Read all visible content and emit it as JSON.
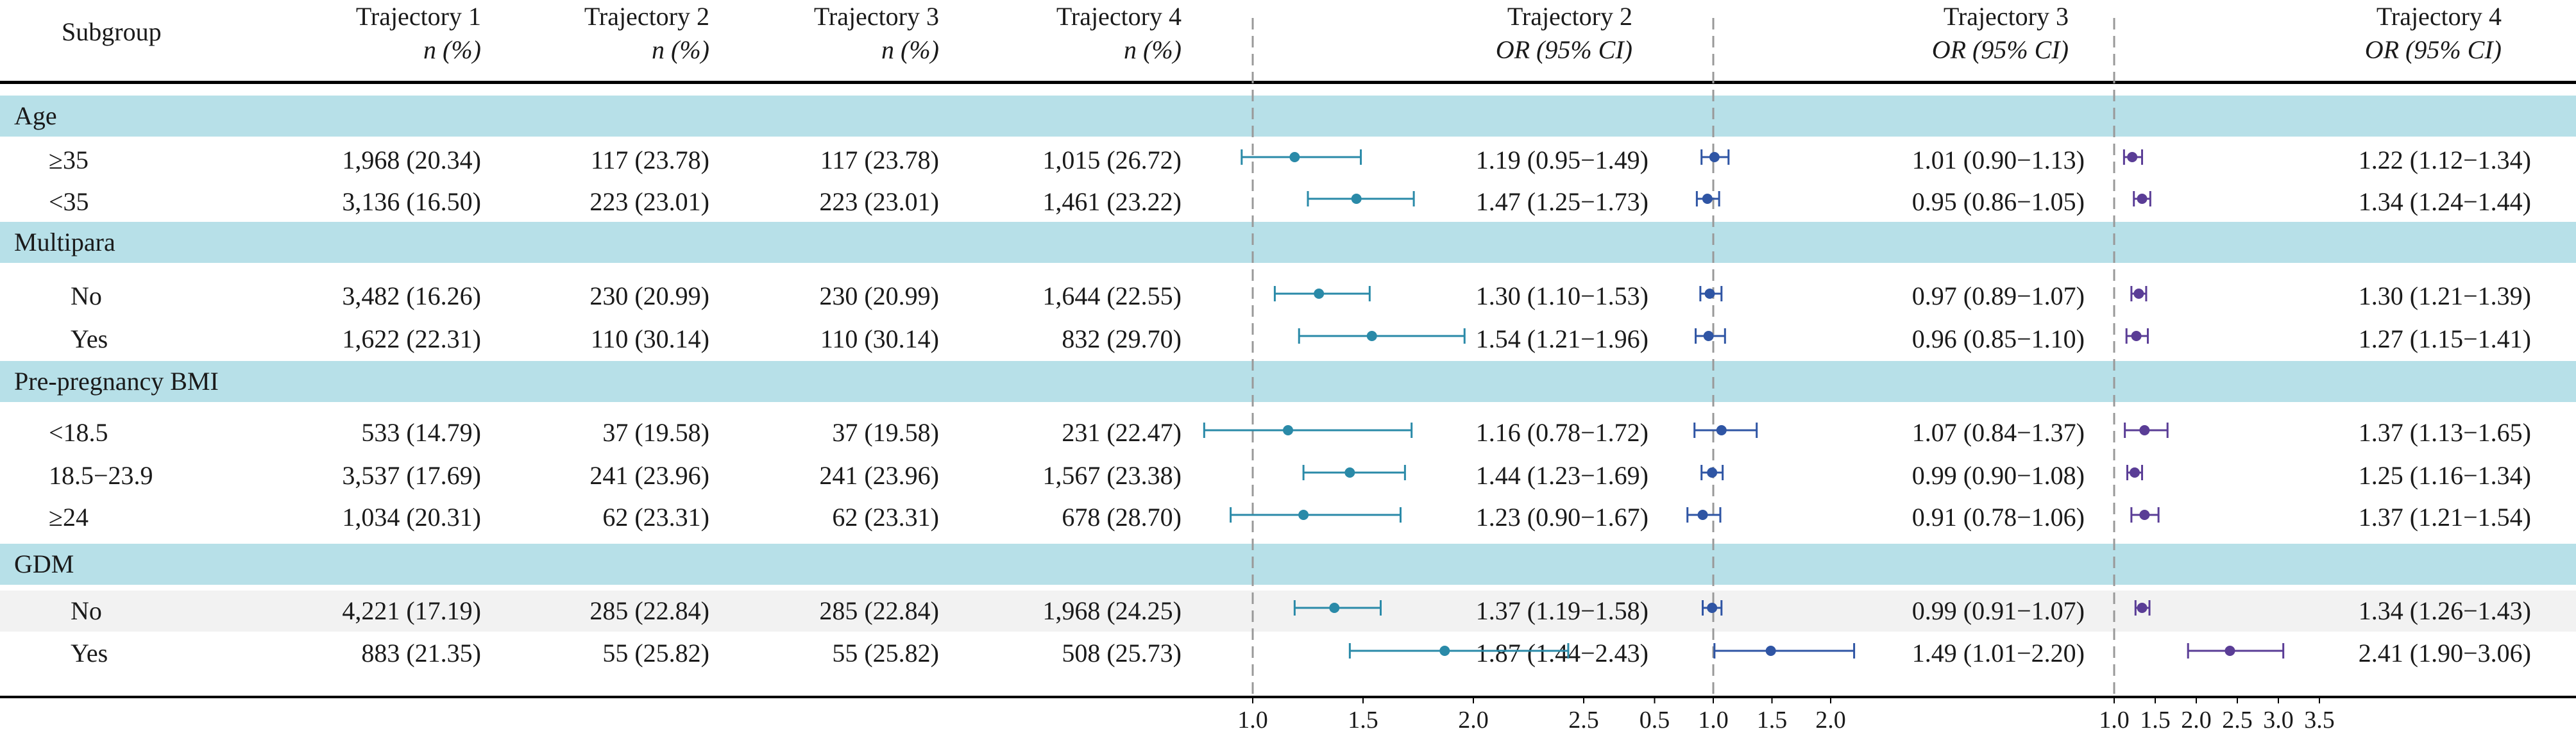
{
  "header": {
    "subgroup": "Subgroup",
    "n_pct": "n (%)",
    "or_ci": "OR (95% CI)",
    "trajectories": [
      "Trajectory 1",
      "Trajectory 2",
      "Trajectory 3",
      "Trajectory 4"
    ],
    "forest_titles": [
      "Trajectory 2",
      "Trajectory 3",
      "Trajectory 4"
    ]
  },
  "colors": {
    "band": "#b7e0e8",
    "highlight": "#f2f2f2",
    "ref_line": "#999999",
    "panel": [
      "#2a8aa8",
      "#2f55a4",
      "#5a3d96"
    ]
  },
  "rows": [
    {
      "type": "group",
      "label": "Age"
    },
    {
      "type": "item",
      "label": "≥35",
      "n": [
        "1,968 (20.34)",
        "117 (23.78)",
        "117 (23.78)",
        "1,015 (26.72)"
      ],
      "ci_text": [
        "1.19 (0.95−1.49)",
        "1.01 (0.90−1.13)",
        "1.22 (1.12−1.34)"
      ]
    },
    {
      "type": "item",
      "label": "<35",
      "n": [
        "3,136 (16.50)",
        "223 (23.01)",
        "223 (23.01)",
        "1,461 (23.22)"
      ],
      "ci_text": [
        "1.47 (1.25−1.73)",
        "0.95 (0.86−1.05)",
        "1.34 (1.24−1.44)"
      ]
    },
    {
      "type": "group",
      "label": "Multipara"
    },
    {
      "type": "item",
      "label": "No",
      "n": [
        "3,482 (16.26)",
        "230 (20.99)",
        "230 (20.99)",
        "1,644 (22.55)"
      ],
      "ci_text": [
        "1.30 (1.10−1.53)",
        "0.97 (0.89−1.07)",
        "1.30 (1.21−1.39)"
      ]
    },
    {
      "type": "item",
      "label": "Yes",
      "n": [
        "1,622 (22.31)",
        "110 (30.14)",
        "110 (30.14)",
        "832 (29.70)"
      ],
      "ci_text": [
        "1.54 (1.21−1.96)",
        "0.96 (0.85−1.10)",
        "1.27 (1.15−1.41)"
      ]
    },
    {
      "type": "group",
      "label": "Pre-pregnancy BMI"
    },
    {
      "type": "item",
      "label": "<18.5",
      "n": [
        "533 (14.79)",
        "37 (19.58)",
        "37 (19.58)",
        "231 (22.47)"
      ],
      "ci_text": [
        "1.16 (0.78−1.72)",
        "1.07 (0.84−1.37)",
        "1.37 (1.13−1.65)"
      ]
    },
    {
      "type": "item",
      "label": "18.5−23.9",
      "n": [
        "3,537 (17.69)",
        "241 (23.96)",
        "241 (23.96)",
        "1,567 (23.38)"
      ],
      "ci_text": [
        "1.44 (1.23−1.69)",
        "0.99 (0.90−1.08)",
        "1.25 (1.16−1.34)"
      ]
    },
    {
      "type": "item",
      "label": "≥24",
      "n": [
        "1,034 (20.31)",
        "62 (23.31)",
        "62 (23.31)",
        "678 (28.70)"
      ],
      "ci_text": [
        "1.23 (0.90−1.67)",
        "0.91 (0.78−1.06)",
        "1.37 (1.21−1.54)"
      ]
    },
    {
      "type": "group",
      "label": "GDM"
    },
    {
      "type": "item",
      "label": "No",
      "highlight": true,
      "n": [
        "4,221 (17.19)",
        "285 (22.84)",
        "285 (22.84)",
        "1,968 (24.25)"
      ],
      "ci_text": [
        "1.37 (1.19−1.58)",
        "0.99 (0.91−1.07)",
        "1.34 (1.26−1.43)"
      ]
    },
    {
      "type": "item",
      "label": "Yes",
      "n": [
        "883 (21.35)",
        "55 (25.82)",
        "55 (25.82)",
        "508 (25.73)"
      ],
      "ci_text": [
        "1.87 (1.44−2.43)",
        "1.49 (1.01−2.20)",
        "2.41 (1.90−3.06)"
      ]
    }
  ],
  "chart_data": [
    {
      "type": "scatter",
      "title": "Trajectory 2",
      "ref": 1.0,
      "xlim": [
        0.8,
        2.5
      ],
      "ticks": [
        1.0,
        1.5,
        2.0,
        2.5
      ],
      "tick_labels": [
        "1.0",
        "1.5",
        "2.0",
        "2.5"
      ],
      "categories": [
        "≥35",
        "<35",
        "No",
        "Yes",
        "<18.5",
        "18.5−23.9",
        "≥24",
        "No",
        "Yes"
      ],
      "or": [
        1.19,
        1.47,
        1.3,
        1.54,
        1.16,
        1.44,
        1.23,
        1.37,
        1.87
      ],
      "lower": [
        0.95,
        1.25,
        1.1,
        1.21,
        0.78,
        1.23,
        0.9,
        1.19,
        1.44
      ],
      "upper": [
        1.49,
        1.73,
        1.53,
        1.96,
        1.72,
        1.69,
        1.67,
        1.58,
        2.43
      ]
    },
    {
      "type": "scatter",
      "title": "Trajectory 3",
      "ref": 1.0,
      "xlim": [
        0.5,
        2.0
      ],
      "ticks": [
        0.5,
        1.0,
        1.5,
        2.0
      ],
      "tick_labels": [
        "0.5",
        "1.0",
        "1.5",
        "2.0"
      ],
      "categories": [
        "≥35",
        "<35",
        "No",
        "Yes",
        "<18.5",
        "18.5−23.9",
        "≥24",
        "No",
        "Yes"
      ],
      "or": [
        1.01,
        0.95,
        0.97,
        0.96,
        1.07,
        0.99,
        0.91,
        0.99,
        1.49
      ],
      "lower": [
        0.9,
        0.86,
        0.89,
        0.85,
        0.84,
        0.9,
        0.78,
        0.91,
        1.01
      ],
      "upper": [
        1.13,
        1.05,
        1.07,
        1.1,
        1.37,
        1.08,
        1.06,
        1.07,
        2.2
      ]
    },
    {
      "type": "scatter",
      "title": "Trajectory 4",
      "ref": 1.0,
      "xlim": [
        1.0,
        3.5
      ],
      "ticks": [
        1.0,
        1.5,
        2.0,
        2.5,
        3.0,
        3.5
      ],
      "tick_labels": [
        "1.0",
        "1.5",
        "2.0",
        "2.5",
        "3.0",
        "3.5"
      ],
      "categories": [
        "≥35",
        "<35",
        "No",
        "Yes",
        "<18.5",
        "18.5−23.9",
        "≥24",
        "No",
        "Yes"
      ],
      "or": [
        1.22,
        1.34,
        1.3,
        1.27,
        1.37,
        1.25,
        1.37,
        1.34,
        2.41
      ],
      "lower": [
        1.12,
        1.24,
        1.21,
        1.15,
        1.13,
        1.16,
        1.21,
        1.26,
        1.9
      ],
      "upper": [
        1.34,
        1.44,
        1.39,
        1.41,
        1.65,
        1.34,
        1.54,
        1.43,
        3.06
      ]
    }
  ]
}
